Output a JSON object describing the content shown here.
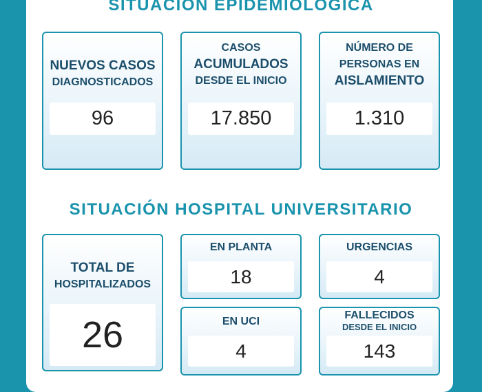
{
  "epidemiologica": {
    "title": "SITUACIÓN EPIDEMIOLÓGICA",
    "nuevos_casos": {
      "line1": "NUEVOS CASOS",
      "line2": "DIAGNOSTICADOS",
      "value": "96"
    },
    "casos_acumulados": {
      "line1": "CASOS",
      "line2": "ACUMULADOS",
      "line3": "DESDE EL INICIO",
      "value": "17.850"
    },
    "aislamiento": {
      "line1": "NÚMERO DE",
      "line2": "PERSONAS EN",
      "line3": "AISLAMIENTO",
      "value": "1.310"
    }
  },
  "hospital": {
    "title": "SITUACIÓN HOSPITAL UNIVERSITARIO",
    "total": {
      "line1": "TOTAL DE",
      "line2": "HOSPITALIZADOS",
      "value": "26"
    },
    "planta": {
      "label": "EN PLANTA",
      "value": "18"
    },
    "urgencias": {
      "label": "URGENCIAS",
      "value": "4"
    },
    "uci": {
      "label": "EN UCI",
      "value": "4"
    },
    "fallecidos": {
      "line1": "FALLECIDOS",
      "line2": "DESDE EL INICIO",
      "value": "143"
    }
  },
  "colors": {
    "teal": "#1a93ad",
    "label_text": "#1c4e6b",
    "card_tint": "#d5eaf5"
  }
}
